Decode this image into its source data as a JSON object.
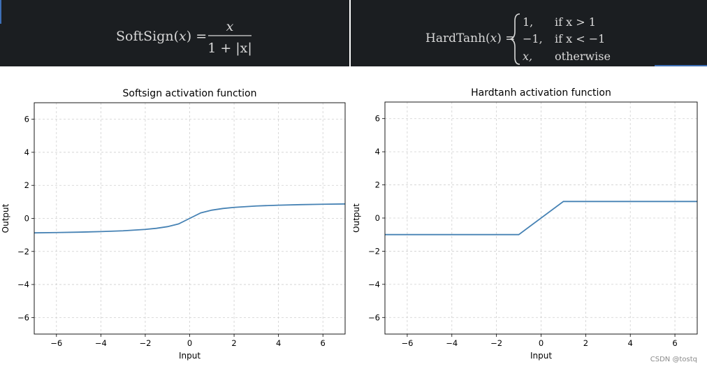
{
  "formulas": {
    "softsign": {
      "lhs_name": "SoftSign",
      "lhs_var": "x",
      "numerator": "x",
      "denominator_text": "1 + |x|"
    },
    "hardtanh": {
      "lhs_name": "HardTanh",
      "lhs_var": "x",
      "cases": [
        {
          "value": "1,",
          "condition": "if x > 1"
        },
        {
          "value": "−1,",
          "condition": "if x < −1"
        },
        {
          "value": "x,",
          "condition": "otherwise"
        }
      ]
    }
  },
  "watermark": "CSDN @tostq",
  "chart_data": [
    {
      "type": "line",
      "title": "Softsign activation function",
      "xlabel": "Input",
      "ylabel": "Output",
      "xlim": [
        -7,
        7
      ],
      "ylim": [
        -7,
        7
      ],
      "xticks": [
        -6,
        -4,
        -2,
        0,
        2,
        4,
        6
      ],
      "yticks": [
        -6,
        -4,
        -2,
        0,
        2,
        4,
        6
      ],
      "grid": true,
      "line_color": "#4682b4",
      "x": [
        -7,
        -6,
        -5,
        -4,
        -3,
        -2,
        -1.5,
        -1,
        -0.5,
        0,
        0.5,
        1,
        1.5,
        2,
        3,
        4,
        5,
        6,
        7
      ],
      "y": [
        -0.875,
        -0.857,
        -0.833,
        -0.8,
        -0.75,
        -0.667,
        -0.6,
        -0.5,
        -0.333,
        0,
        0.333,
        0.5,
        0.6,
        0.667,
        0.75,
        0.8,
        0.833,
        0.857,
        0.875
      ]
    },
    {
      "type": "line",
      "title": "Hardtanh activation function",
      "xlabel": "Input",
      "ylabel": "Output",
      "xlim": [
        -7,
        7
      ],
      "ylim": [
        -7,
        7
      ],
      "xticks": [
        -6,
        -4,
        -2,
        0,
        2,
        4,
        6
      ],
      "yticks": [
        -6,
        -4,
        -2,
        0,
        2,
        4,
        6
      ],
      "grid": true,
      "line_color": "#4682b4",
      "x": [
        -7,
        -1,
        1,
        7
      ],
      "y": [
        -1,
        -1,
        1,
        1
      ]
    }
  ]
}
